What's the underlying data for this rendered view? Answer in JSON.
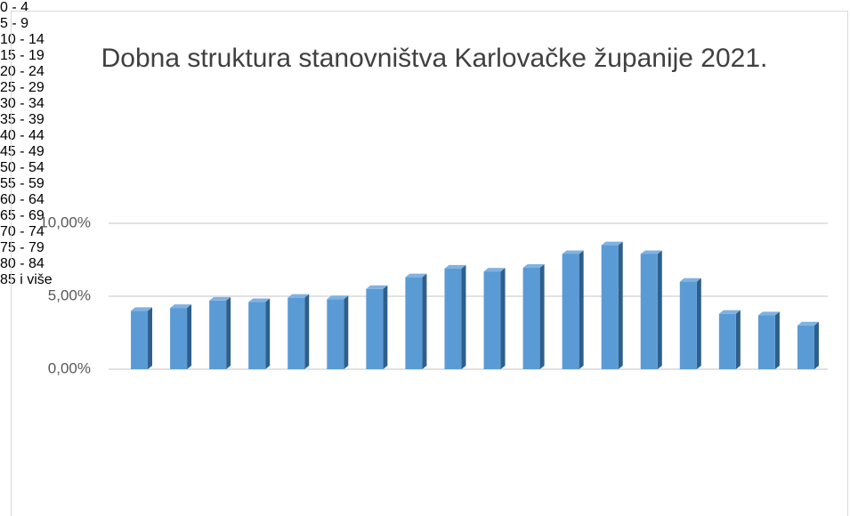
{
  "chart_data": {
    "type": "bar",
    "title": "Dobna struktura stanovništva Karlovačke županije 2021.",
    "categories": [
      "0 - 4",
      "5 - 9",
      "10 - 14",
      "15 - 19",
      "20 - 24",
      "25 - 29",
      "30 - 34",
      "35 - 39",
      "40 - 44",
      "45 - 49",
      "50 - 54",
      "55 - 59",
      "60 - 64",
      "65 - 69",
      "70 - 74",
      "75 - 79",
      "80 - 84",
      "85 i više"
    ],
    "values": [
      4.0,
      4.2,
      4.7,
      4.6,
      4.9,
      4.8,
      5.5,
      6.3,
      6.9,
      6.7,
      6.95,
      7.9,
      8.5,
      7.9,
      6.0,
      3.8,
      3.7,
      3.0
    ],
    "color": "#5b9bd5",
    "ylim": [
      0,
      10
    ],
    "yticks": [
      {
        "value": 0,
        "label": "0,00%"
      },
      {
        "value": 5,
        "label": "5,00%"
      },
      {
        "value": 10,
        "label": "10,00%"
      }
    ],
    "grid": true
  }
}
